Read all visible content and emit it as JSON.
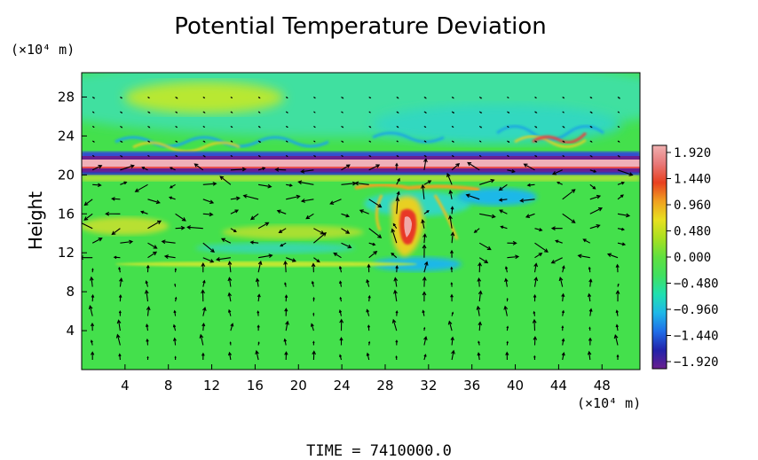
{
  "chart_data": {
    "type": "heatmap",
    "title": "Potential Temperature Deviation",
    "ylabel": "Height",
    "y_unit": "(×10⁴ m)",
    "x_unit": "(×10⁴ m)",
    "footer": "TIME = 7410000.0",
    "x_ticks": [
      "4",
      "8",
      "12",
      "16",
      "20",
      "24",
      "28",
      "32",
      "36",
      "40",
      "44",
      "48"
    ],
    "y_ticks": [
      "4",
      "8",
      "12",
      "16",
      "20",
      "24",
      "28"
    ],
    "xlim": [
      0,
      51.5
    ],
    "ylim": [
      0,
      30.5
    ],
    "colorbar": {
      "labels": [
        "1.920",
        "1.440",
        "0.960",
        "0.480",
        "0.000",
        "−0.480",
        "−0.960",
        "−1.440",
        "−1.920"
      ],
      "range": [
        -1.92,
        1.92
      ],
      "colors": [
        "#6a1f8f",
        "#2222aa",
        "#1f6ee8",
        "#1fb8e8",
        "#20e0b0",
        "#40e060",
        "#60e040",
        "#a8e020",
        "#e8e020",
        "#f0a020",
        "#e84020",
        "#e87878",
        "#f0b0b0"
      ]
    },
    "background_color": "#44e04c",
    "overlay": "wind vector arrows",
    "features": [
      {
        "label": "upper-level shear band",
        "y_center": 20.5,
        "deviation": 1.9
      },
      {
        "label": "convective cell",
        "x_center": 31,
        "y_center": 14.5,
        "deviation": 1.9
      }
    ]
  }
}
